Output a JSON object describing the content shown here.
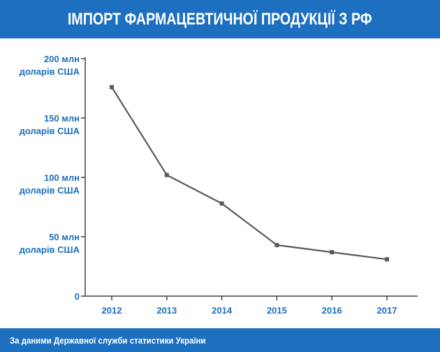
{
  "title": "ІМПОРТ ФАРМАЦЕВТИЧНОЇ ПРОДУКЦІЇ З РФ",
  "source": "За даними Державної служби статистики України",
  "colors": {
    "accent": "#1d6fbf",
    "line": "#595959",
    "axis": "#404040"
  },
  "chart_data": {
    "type": "line",
    "title": "ІМПОРТ ФАРМАЦЕВТИЧНОЇ ПРОДУКЦІЇ З РФ",
    "xlabel": "",
    "ylabel": "",
    "categories": [
      "2012",
      "2013",
      "2014",
      "2015",
      "2016",
      "2017"
    ],
    "series": [
      {
        "values": [
          176,
          102,
          78,
          43,
          37,
          31
        ]
      }
    ],
    "ylim": [
      0,
      200
    ],
    "y_ticks": [
      {
        "value": 0,
        "label_lines": [
          "0"
        ]
      },
      {
        "value": 50,
        "label_lines": [
          "50 млн",
          "доларів США"
        ]
      },
      {
        "value": 100,
        "label_lines": [
          "100 млн",
          "доларів США"
        ]
      },
      {
        "value": 150,
        "label_lines": [
          "150 млн",
          "доларів США"
        ]
      },
      {
        "value": 200,
        "label_lines": [
          "200 млн",
          "доларів США"
        ]
      }
    ],
    "grid": false,
    "legend": "none"
  }
}
